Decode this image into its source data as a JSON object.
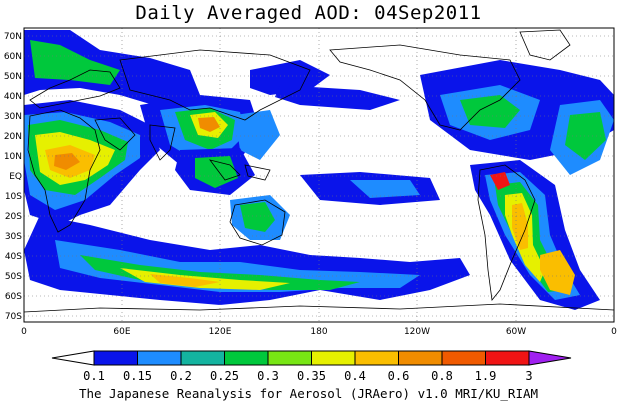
{
  "title": "Daily Averaged AOD: 04Sep2011",
  "credit": "The Japanese Reanalysis for Aerosol (JRAero) v1.0 MRI/KU_RIAM",
  "map": {
    "lat_labels": [
      "70N",
      "60N",
      "50N",
      "40N",
      "30N",
      "20N",
      "10N",
      "EQ",
      "10S",
      "20S",
      "30S",
      "40S",
      "50S",
      "60S",
      "70S"
    ],
    "lon_labels": [
      "0",
      "60E",
      "120E",
      "180",
      "120W",
      "60W",
      "0"
    ],
    "gridlines": "dotted"
  },
  "colorbar": {
    "levels": [
      "0.1",
      "0.15",
      "0.2",
      "0.25",
      "0.3",
      "0.35",
      "0.4",
      "0.6",
      "0.8",
      "1.9",
      "3"
    ],
    "colors": [
      "#ffffff",
      "#0a14ea",
      "#1e8cff",
      "#14b4a0",
      "#00c83c",
      "#78e614",
      "#e6f000",
      "#fabe00",
      "#f08c00",
      "#f05a00",
      "#f01414",
      "#a020f0"
    ]
  },
  "map_fields": {
    "land": "#ffffff",
    "ocean": "#ffffff",
    "coast": "#000000",
    "dust_plumes": [
      "Sahara-Arabia",
      "East Asia",
      "Southern Ocean band",
      "South America"
    ]
  }
}
